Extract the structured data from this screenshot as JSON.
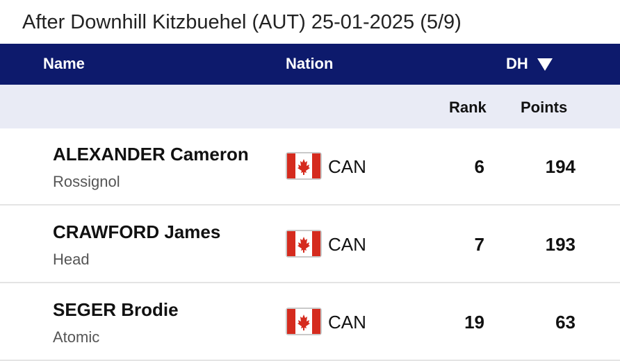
{
  "header": {
    "title": "After Downhill Kitzbuehel (AUT) 25-01-2025 (5/9)"
  },
  "table": {
    "columns": [
      "Name",
      "Nation",
      "DH"
    ],
    "subcolumns": [
      "Rank",
      "Points"
    ],
    "rows": [
      {
        "name": "ALEXANDER Cameron",
        "brand": "Rossignol",
        "nation": "CAN",
        "rank": 6,
        "points": 194
      },
      {
        "name": "CRAWFORD James",
        "brand": "Head",
        "nation": "CAN",
        "rank": 7,
        "points": 193
      },
      {
        "name": "SEGER Brodie",
        "brand": "Atomic",
        "nation": "CAN",
        "rank": 19,
        "points": 63
      }
    ]
  }
}
